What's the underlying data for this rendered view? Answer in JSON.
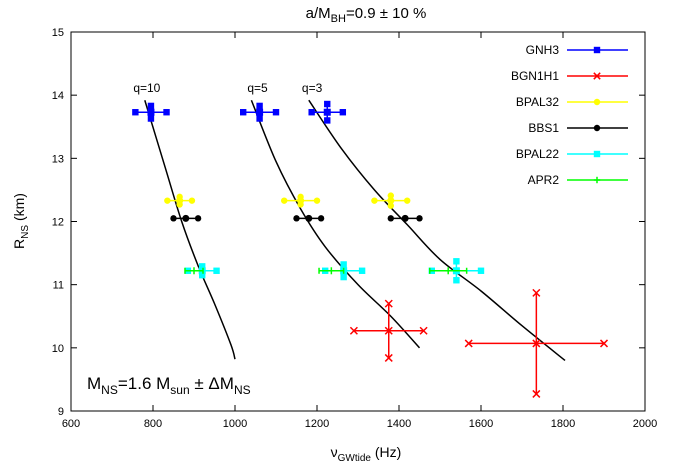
{
  "chart_data": {
    "type": "scatter",
    "title_main": "a/M",
    "title_sub": "BH",
    "title_rest": "=0.9 ± 10 %",
    "xlabel_main": "ν",
    "xlabel_sub": "GWtide",
    "xlabel_rest": " (Hz)",
    "ylabel_main": "R",
    "ylabel_sub": "NS",
    "ylabel_rest": " (km)",
    "xlim": [
      600,
      2000
    ],
    "ylim": [
      9,
      15
    ],
    "xticks": [
      600,
      800,
      1000,
      1200,
      1400,
      1600,
      1800,
      2000
    ],
    "yticks": [
      9,
      10,
      11,
      12,
      13,
      14,
      15
    ],
    "grid": false,
    "legend_position": "top-right",
    "annotation": {
      "part1": "M",
      "sub1": "NS",
      "part2": "=1.6 M",
      "sub2": "sun",
      "part3": " ± ΔM",
      "sub3": "NS"
    },
    "curve_labels": [
      {
        "text": "q=10",
        "x": 785,
        "y": 14.05
      },
      {
        "text": "q=5",
        "x": 1055,
        "y": 14.05
      },
      {
        "text": "q=3",
        "x": 1188,
        "y": 14.05
      }
    ],
    "fit_curves": [
      {
        "name": "q=10",
        "points": [
          [
            780,
            13.92
          ],
          [
            830,
            12.85
          ],
          [
            870,
            12.0
          ],
          [
            910,
            11.3
          ],
          [
            950,
            10.7
          ],
          [
            990,
            10.05
          ],
          [
            1000,
            9.82
          ]
        ]
      },
      {
        "name": "q=5",
        "points": [
          [
            1040,
            13.92
          ],
          [
            1100,
            12.95
          ],
          [
            1160,
            12.2
          ],
          [
            1220,
            11.6
          ],
          [
            1300,
            11.0
          ],
          [
            1380,
            10.5
          ],
          [
            1450,
            10.0
          ]
        ]
      },
      {
        "name": "q=3",
        "points": [
          [
            1180,
            13.92
          ],
          [
            1260,
            13.15
          ],
          [
            1340,
            12.5
          ],
          [
            1420,
            11.95
          ],
          [
            1500,
            11.4
          ],
          [
            1600,
            10.9
          ],
          [
            1700,
            10.35
          ],
          [
            1805,
            9.8
          ]
        ]
      }
    ],
    "series": [
      {
        "name": "GNH3",
        "color": "#0000ff",
        "marker": "square",
        "points": [
          {
            "x": 795,
            "y": 13.73,
            "xerr": 38,
            "yerr": 0.1
          },
          {
            "x": 1060,
            "y": 13.73,
            "xerr": 40,
            "yerr": 0.1
          },
          {
            "x": 1225,
            "y": 13.73,
            "xerr": 38,
            "yerr": 0.13
          }
        ]
      },
      {
        "name": "BGN1H1",
        "color": "#ff0000",
        "marker": "x",
        "points": [
          {
            "x": 1375,
            "y": 10.27,
            "xerr": 85,
            "yerr": 0.43
          },
          {
            "x": 1735,
            "y": 10.07,
            "xerr": 165,
            "yerr": 0.8
          }
        ]
      },
      {
        "name": "BPAL32",
        "color": "#ffff00",
        "marker": "circle",
        "points": [
          {
            "x": 865,
            "y": 12.33,
            "xerr": 30,
            "yerr": 0.06
          },
          {
            "x": 1160,
            "y": 12.33,
            "xerr": 40,
            "yerr": 0.06
          },
          {
            "x": 1380,
            "y": 12.33,
            "xerr": 40,
            "yerr": 0.08
          }
        ]
      },
      {
        "name": "BBS1",
        "color": "#000000",
        "marker": "circle",
        "points": [
          {
            "x": 880,
            "y": 12.05,
            "xerr": 30,
            "yerr": 0
          },
          {
            "x": 1180,
            "y": 12.05,
            "xerr": 30,
            "yerr": 0
          },
          {
            "x": 1415,
            "y": 12.05,
            "xerr": 35,
            "yerr": 0
          }
        ]
      },
      {
        "name": "BPAL22",
        "color": "#00ffff",
        "marker": "square",
        "points": [
          {
            "x": 920,
            "y": 11.22,
            "xerr": 35,
            "yerr": 0.07
          },
          {
            "x": 1265,
            "y": 11.22,
            "xerr": 45,
            "yerr": 0.1
          },
          {
            "x": 1540,
            "y": 11.22,
            "xerr": 60,
            "yerr": 0.15
          }
        ]
      },
      {
        "name": "APR2",
        "color": "#00ff00",
        "marker": "plus",
        "points": [
          {
            "x": 900,
            "y": 11.22,
            "xerr": 22,
            "yerr": 0
          },
          {
            "x": 1235,
            "y": 11.22,
            "xerr": 30,
            "yerr": 0
          },
          {
            "x": 1520,
            "y": 11.22,
            "xerr": 45,
            "yerr": 0
          }
        ]
      }
    ]
  }
}
